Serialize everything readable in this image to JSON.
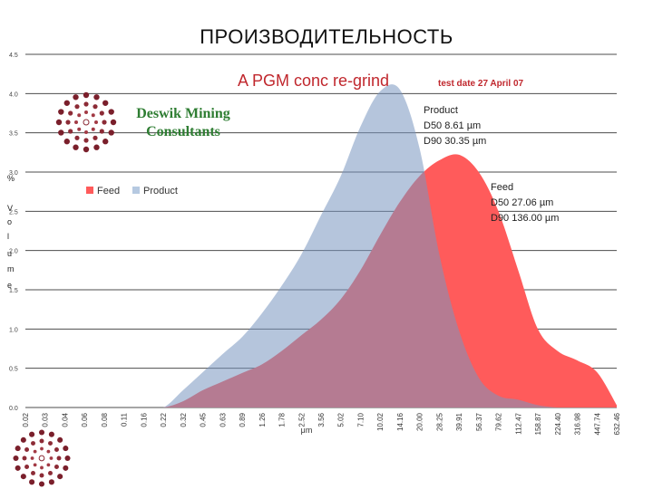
{
  "slide": {
    "title": "ПРОИЗВОДИТЕЛЬНОСТЬ"
  },
  "logo": {
    "name_line1": "Deswik Mining",
    "name_line2": "Consultants"
  },
  "chart_data": {
    "type": "area",
    "title": "A PGM conc  re-grind",
    "subtitle": "test date 27 April 07",
    "xlabel": "μm",
    "ylabel": "% Volume",
    "ylim": [
      0,
      4.5
    ],
    "yticks": [
      "0.0",
      "0.5",
      "1.0",
      "1.5",
      "2.0",
      "2.5",
      "3.0",
      "3.5",
      "4.0",
      "4.5"
    ],
    "categories": [
      "0.02",
      "0.03",
      "0.04",
      "0.06",
      "0.08",
      "0.11",
      "0.16",
      "0.22",
      "0.32",
      "0.45",
      "0.63",
      "0.89",
      "1.26",
      "1.78",
      "2.52",
      "3.56",
      "5.02",
      "7.10",
      "10.02",
      "14.16",
      "20.00",
      "28.25",
      "39.91",
      "56.37",
      "79.62",
      "112.47",
      "158.87",
      "224.40",
      "316.98",
      "447.74",
      "632.46"
    ],
    "y_label_chars": [
      "%",
      "V",
      "o",
      "l",
      "u",
      "m",
      "e"
    ],
    "legend": [
      "Feed",
      "Product"
    ],
    "colors": {
      "feed": "#ff5b5b",
      "product": "#b6c9e1",
      "grid": "#4d4d4d",
      "title": "#c0272d"
    },
    "series": [
      {
        "name": "Feed",
        "values": [
          0,
          0,
          0,
          0,
          0,
          0,
          0,
          0,
          0.08,
          0.22,
          0.33,
          0.44,
          0.55,
          0.72,
          0.92,
          1.12,
          1.38,
          1.75,
          2.2,
          2.62,
          2.95,
          3.15,
          3.22,
          3.0,
          2.5,
          1.75,
          1.0,
          0.72,
          0.6,
          0.45,
          0.03
        ]
      },
      {
        "name": "Product",
        "values": [
          0,
          0,
          0,
          0,
          0,
          0,
          0,
          0,
          0.22,
          0.45,
          0.68,
          0.9,
          1.2,
          1.55,
          1.95,
          2.45,
          2.95,
          3.58,
          4.03,
          4.05,
          3.3,
          1.95,
          0.98,
          0.38,
          0.15,
          0.1,
          0.03,
          0,
          0,
          0,
          0
        ]
      }
    ],
    "annotations": {
      "product": [
        "Product",
        "D50 8.61 µm",
        "D90 30.35 µm"
      ],
      "feed": [
        "Feed",
        "D50 27.06 µm",
        "D90 136.00 µm"
      ]
    }
  }
}
